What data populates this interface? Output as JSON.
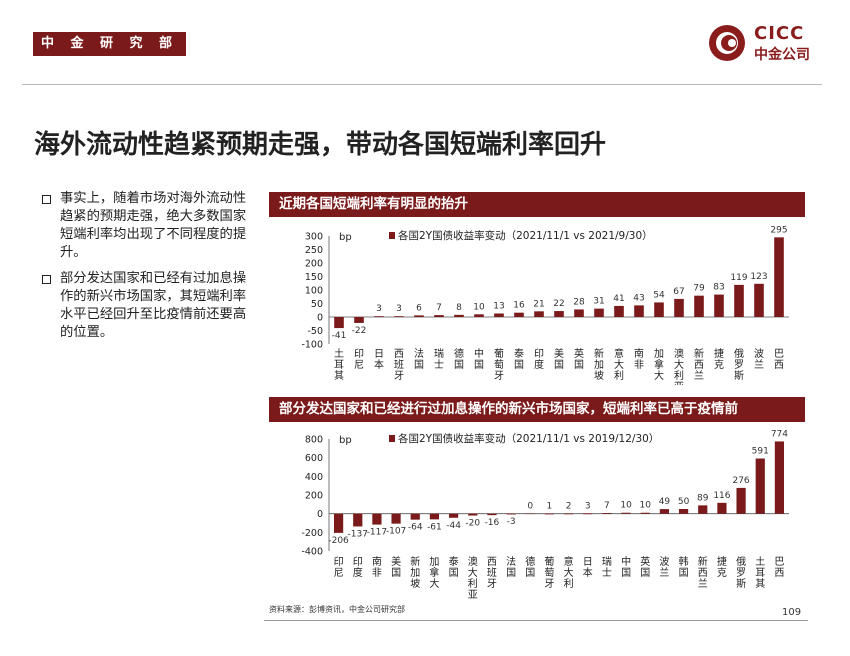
{
  "header": {
    "tag": "中 金 研 究 部",
    "logo_en": "CICC",
    "logo_cn": "中金公司"
  },
  "title": "海外流动性趋紧预期走强，带动各国短端利率回升",
  "bullets": [
    "事实上，随着市场对海外流动性趋紧的预期走强，绝大多数国家短端利率均出现了不同程度的提升。",
    "部分发达国家和已经有过加息操作的新兴市场国家，其短端利率水平已经回升至比疫情前还要高的位置。"
  ],
  "chart_data": [
    {
      "type": "bar",
      "title": "近期各国短端利率有明显的抬升",
      "ylabel": "bp",
      "legend": "各国2Y国债收益率变动（2021/11/1 vs 2021/9/30）",
      "ylim": [
        -100,
        300
      ],
      "yticks": [
        -100,
        -50,
        0,
        50,
        100,
        150,
        200,
        250,
        300
      ],
      "categories": [
        "土耳其",
        "印尼",
        "日本",
        "西班牙",
        "法国",
        "瑞士",
        "德国",
        "中国",
        "葡萄牙",
        "泰国",
        "印度",
        "美国",
        "英国",
        "新加坡",
        "意大利",
        "南非",
        "加拿大",
        "澳大利亚",
        "新西兰",
        "捷克",
        "俄罗斯",
        "波兰",
        "巴西"
      ],
      "values": [
        -41,
        -22,
        3,
        3,
        6,
        7,
        8,
        10,
        13,
        16,
        21,
        22,
        28,
        31,
        41,
        43,
        54,
        67,
        79,
        83,
        119,
        123,
        295
      ],
      "color": "#7b1a1a"
    },
    {
      "type": "bar",
      "title": "部分发达国家和已经进行过加息操作的新兴市场国家，短端利率已高于疫情前",
      "ylabel": "bp",
      "legend": "各国2Y国债收益率变动（2021/11/1 vs 2019/12/30）",
      "ylim": [
        -400,
        800
      ],
      "yticks": [
        -400,
        -200,
        0,
        200,
        400,
        600,
        800
      ],
      "categories": [
        "印尼",
        "印度",
        "南非",
        "美国",
        "新加坡",
        "加拿大",
        "泰国",
        "澳大利亚",
        "西班牙",
        "法国",
        "德国",
        "葡萄牙",
        "意大利",
        "日本",
        "瑞士",
        "中国",
        "英国",
        "波兰",
        "韩国",
        "新西兰",
        "捷克",
        "俄罗斯",
        "土耳其",
        "巴西"
      ],
      "values": [
        -206,
        -137,
        -117,
        -107,
        -64,
        -61,
        -44,
        -20,
        -16,
        -3,
        0,
        1,
        2,
        3,
        7,
        10,
        10,
        49,
        50,
        89,
        116,
        276,
        591,
        774
      ],
      "color": "#7b1a1a"
    }
  ],
  "footer": {
    "source": "资料来源：彭博资讯，中金公司研究部",
    "page": "109"
  }
}
